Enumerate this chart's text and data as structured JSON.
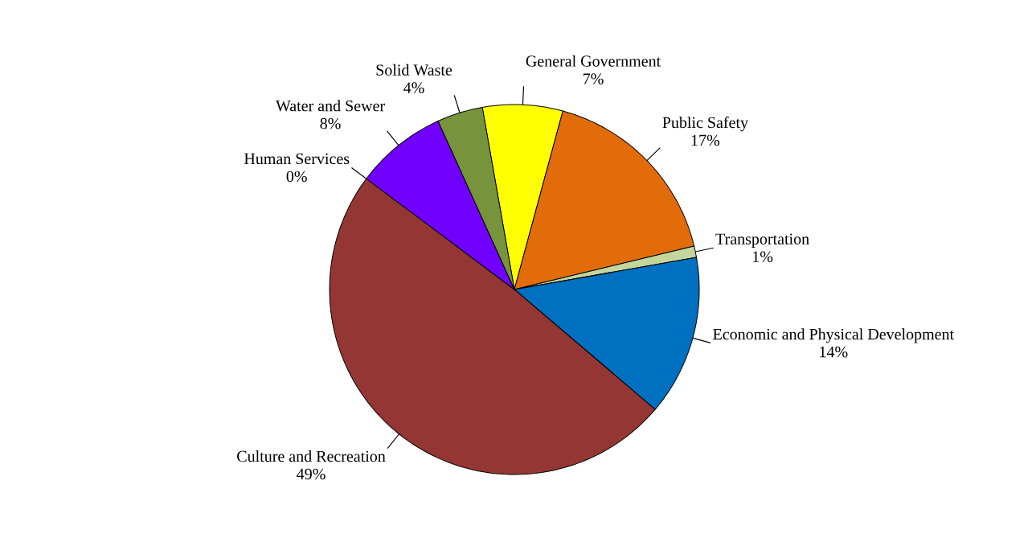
{
  "chart_data": {
    "type": "pie",
    "categories": [
      "General Government",
      "Public Safety",
      "Transportation",
      "Economic and Physical Development",
      "Culture and Recreation",
      "Human Services",
      "Water and Sewer",
      "Solid Waste"
    ],
    "values": [
      7,
      17,
      1,
      14,
      49,
      0,
      8,
      4
    ],
    "colors": [
      "#ffff00",
      "#e36c0a",
      "#c3d69b",
      "#0070c0",
      "#943634",
      "#e6b9b8",
      "#7000ff",
      "#77933c"
    ],
    "value_labels": [
      "7%",
      "17%",
      "1%",
      "14%",
      "49%",
      "0%",
      "8%",
      "4%"
    ]
  }
}
